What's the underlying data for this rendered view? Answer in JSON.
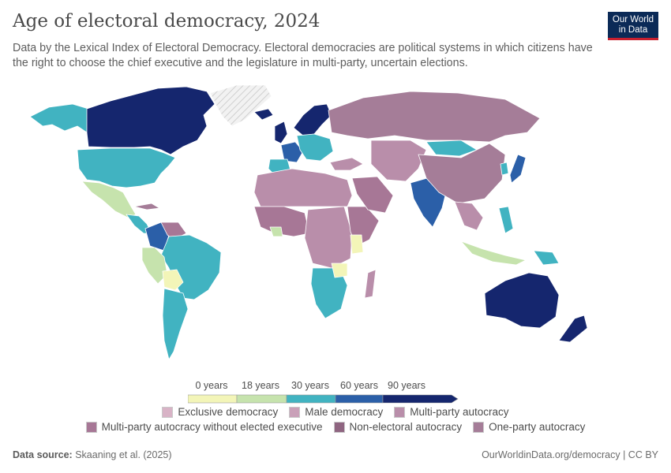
{
  "header": {
    "title": "Age of electoral democracy, 2024",
    "subtitle": "Data by the Lexical Index of Electoral Democracy. Electoral democracies are political systems in which citizens have the right to choose the chief executive and the legislature in multi-party, uncertain elections."
  },
  "logo": {
    "line1": "Our World",
    "line2": "in Data",
    "bg_color": "#0b2a57",
    "accent_color": "#c8202f"
  },
  "legend": {
    "ticks": [
      "0 years",
      "18 years",
      "30 years",
      "60 years",
      "90 years"
    ],
    "bins": [
      {
        "color": "#f3f5b8"
      },
      {
        "color": "#c6e3ad"
      },
      {
        "color": "#41b3c1"
      },
      {
        "color": "#2b5fa8"
      },
      {
        "color": "#15266e"
      }
    ],
    "categories_row1": [
      {
        "label": "Exclusive democracy",
        "color": "#d8b3c6"
      },
      {
        "label": "Male democracy",
        "color": "#c9a0b8"
      },
      {
        "label": "Multi-party autocracy",
        "color": "#b98eaa"
      }
    ],
    "categories_row2": [
      {
        "label": "Multi-party autocracy without elected executive",
        "color": "#a77796"
      },
      {
        "label": "Non-electoral autocracy",
        "color": "#8f6581"
      },
      {
        "label": "One-party autocracy",
        "color": "#a57d98"
      }
    ]
  },
  "colors": {
    "no_data": "#ebebeb",
    "ocean": "#ffffff",
    "border": "#ffffff"
  },
  "footer": {
    "source_label": "Data source:",
    "source_text": "Skaaning et al. (2025)",
    "url": "OurWorldinData.org/democracy | CC BY"
  }
}
